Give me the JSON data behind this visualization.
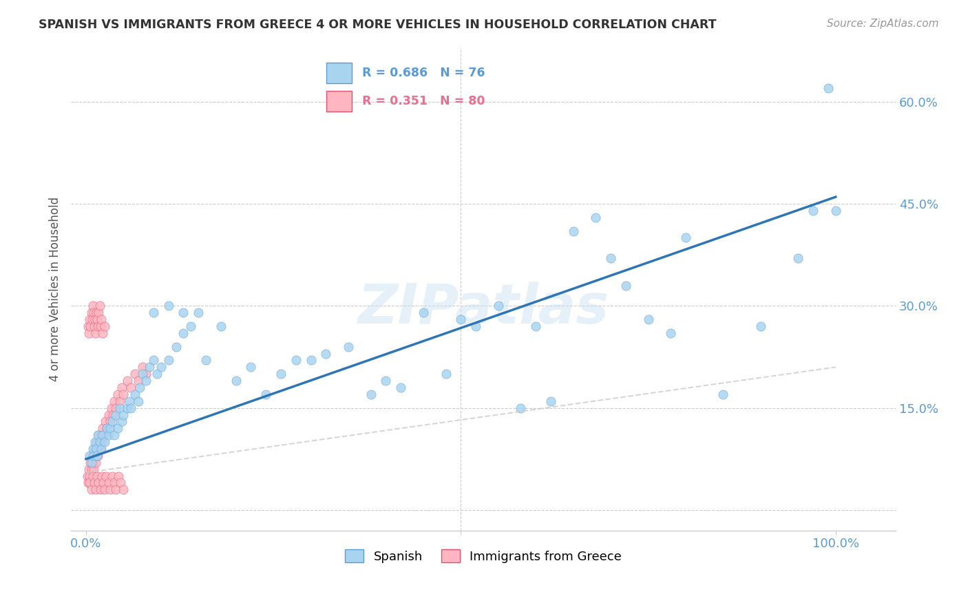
{
  "title": "SPANISH VS IMMIGRANTS FROM GREECE 4 OR MORE VEHICLES IN HOUSEHOLD CORRELATION CHART",
  "source": "Source: ZipAtlas.com",
  "ylabel": "4 or more Vehicles in Household",
  "x_ticks": [
    0.0,
    1.0
  ],
  "x_tick_labels": [
    "0.0%",
    "100.0%"
  ],
  "y_ticks": [
    0.0,
    0.15,
    0.3,
    0.45,
    0.6
  ],
  "y_tick_labels": [
    "",
    "15.0%",
    "30.0%",
    "45.0%",
    "60.0%"
  ],
  "xlim": [
    -0.02,
    1.08
  ],
  "ylim": [
    -0.03,
    0.68
  ],
  "background_color": "#ffffff",
  "grid_color": "#cccccc",
  "watermark": "ZIPatlas",
  "spanish_color": "#a8d4f0",
  "spanish_edge": "#5b9bd5",
  "spanish_trend": "#2e75b6",
  "greece_color": "#ffb6c1",
  "greece_edge": "#e05070",
  "greece_trend": "#cccccc",
  "legend_box_color": "#cccccc",
  "r_text_blue": "#5b9bd5",
  "r_text_pink": "#e87090",
  "tick_color": "#5b9bd5",
  "spanish_x": [
    0.005,
    0.007,
    0.009,
    0.01,
    0.012,
    0.014,
    0.015,
    0.016,
    0.018,
    0.02,
    0.022,
    0.025,
    0.028,
    0.03,
    0.032,
    0.035,
    0.038,
    0.04,
    0.042,
    0.045,
    0.048,
    0.05,
    0.055,
    0.058,
    0.06,
    0.065,
    0.07,
    0.072,
    0.075,
    0.08,
    0.085,
    0.09,
    0.095,
    0.1,
    0.11,
    0.12,
    0.13,
    0.14,
    0.15,
    0.16,
    0.18,
    0.2,
    0.22,
    0.24,
    0.26,
    0.28,
    0.3,
    0.32,
    0.35,
    0.38,
    0.4,
    0.42,
    0.45,
    0.48,
    0.5,
    0.52,
    0.55,
    0.58,
    0.6,
    0.62,
    0.65,
    0.68,
    0.7,
    0.72,
    0.75,
    0.78,
    0.8,
    0.85,
    0.9,
    0.95,
    0.97,
    0.99,
    1.0,
    0.09,
    0.11,
    0.13
  ],
  "spanish_y": [
    0.08,
    0.07,
    0.09,
    0.08,
    0.1,
    0.09,
    0.08,
    0.11,
    0.1,
    0.09,
    0.11,
    0.1,
    0.12,
    0.11,
    0.12,
    0.13,
    0.11,
    0.14,
    0.12,
    0.15,
    0.13,
    0.14,
    0.15,
    0.16,
    0.15,
    0.17,
    0.16,
    0.18,
    0.2,
    0.19,
    0.21,
    0.22,
    0.2,
    0.21,
    0.22,
    0.24,
    0.26,
    0.27,
    0.29,
    0.22,
    0.27,
    0.19,
    0.21,
    0.17,
    0.2,
    0.22,
    0.22,
    0.23,
    0.24,
    0.17,
    0.19,
    0.18,
    0.29,
    0.2,
    0.28,
    0.27,
    0.3,
    0.15,
    0.27,
    0.16,
    0.41,
    0.43,
    0.37,
    0.33,
    0.28,
    0.26,
    0.4,
    0.17,
    0.27,
    0.37,
    0.44,
    0.62,
    0.44,
    0.29,
    0.3,
    0.29
  ],
  "greece_x": [
    0.002,
    0.003,
    0.004,
    0.005,
    0.006,
    0.007,
    0.008,
    0.009,
    0.01,
    0.011,
    0.012,
    0.013,
    0.014,
    0.015,
    0.016,
    0.017,
    0.018,
    0.019,
    0.02,
    0.021,
    0.022,
    0.024,
    0.026,
    0.028,
    0.03,
    0.032,
    0.034,
    0.036,
    0.038,
    0.04,
    0.042,
    0.045,
    0.048,
    0.05,
    0.055,
    0.06,
    0.065,
    0.07,
    0.075,
    0.08,
    0.005,
    0.007,
    0.009,
    0.011,
    0.013,
    0.015,
    0.017,
    0.019,
    0.021,
    0.023,
    0.025,
    0.027,
    0.03,
    0.032,
    0.035,
    0.038,
    0.04,
    0.043,
    0.046,
    0.05,
    0.003,
    0.004,
    0.005,
    0.006,
    0.007,
    0.008,
    0.009,
    0.01,
    0.011,
    0.012,
    0.013,
    0.014,
    0.015,
    0.016,
    0.017,
    0.018,
    0.019,
    0.02,
    0.022,
    0.025
  ],
  "greece_y": [
    0.05,
    0.04,
    0.06,
    0.05,
    0.07,
    0.06,
    0.08,
    0.07,
    0.06,
    0.09,
    0.08,
    0.07,
    0.1,
    0.09,
    0.08,
    0.11,
    0.1,
    0.09,
    0.11,
    0.1,
    0.12,
    0.11,
    0.13,
    0.12,
    0.14,
    0.13,
    0.15,
    0.14,
    0.16,
    0.15,
    0.17,
    0.16,
    0.18,
    0.17,
    0.19,
    0.18,
    0.2,
    0.19,
    0.21,
    0.2,
    0.04,
    0.03,
    0.05,
    0.04,
    0.03,
    0.05,
    0.04,
    0.03,
    0.05,
    0.04,
    0.03,
    0.05,
    0.04,
    0.03,
    0.05,
    0.04,
    0.03,
    0.05,
    0.04,
    0.03,
    0.27,
    0.26,
    0.28,
    0.27,
    0.29,
    0.28,
    0.3,
    0.29,
    0.27,
    0.28,
    0.26,
    0.29,
    0.28,
    0.27,
    0.29,
    0.3,
    0.27,
    0.28,
    0.26,
    0.27
  ],
  "spanish_trend_x": [
    0.0,
    1.0
  ],
  "spanish_trend_y": [
    0.075,
    0.46
  ],
  "greece_trend_x": [
    0.0,
    1.0
  ],
  "greece_trend_y": [
    0.055,
    0.21
  ]
}
